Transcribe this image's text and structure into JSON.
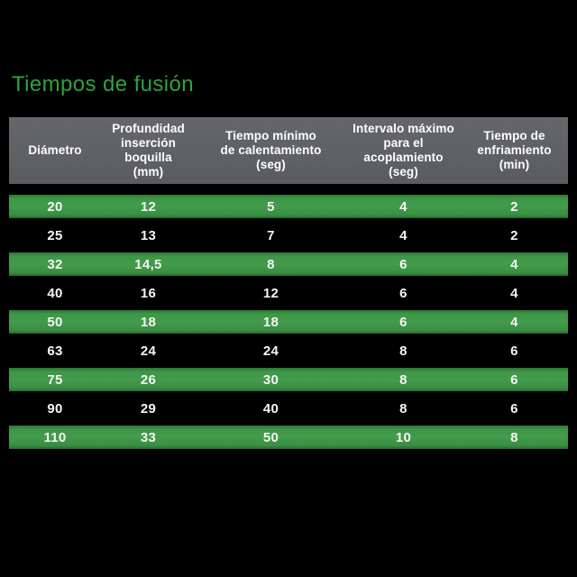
{
  "title": "Tiempos de fusión",
  "colors": {
    "background": "#000000",
    "title_green": "#2FA33D",
    "row_green": "#3E9447",
    "header_gray": "#5F6164",
    "text_white": "#FFFFFF"
  },
  "table": {
    "headers": [
      "Diámetro",
      "Profundidad\ninserción boquilla\n(mm)",
      "Tiempo mínimo\nde calentamiento\n(seg)",
      "Intervalo máximo\npara el acoplamiento\n(seg)",
      "Tiempo de\nenfriamiento\n(min)"
    ],
    "rows": [
      {
        "highlight": true,
        "cells": [
          "20",
          "12",
          "5",
          "4",
          "2"
        ]
      },
      {
        "highlight": false,
        "cells": [
          "25",
          "13",
          "7",
          "4",
          "2"
        ]
      },
      {
        "highlight": true,
        "cells": [
          "32",
          "14,5",
          "8",
          "6",
          "4"
        ]
      },
      {
        "highlight": false,
        "cells": [
          "40",
          "16",
          "12",
          "6",
          "4"
        ]
      },
      {
        "highlight": true,
        "cells": [
          "50",
          "18",
          "18",
          "6",
          "4"
        ]
      },
      {
        "highlight": false,
        "cells": [
          "63",
          "24",
          "24",
          "8",
          "6"
        ]
      },
      {
        "highlight": true,
        "cells": [
          "75",
          "26",
          "30",
          "8",
          "6"
        ]
      },
      {
        "highlight": false,
        "cells": [
          "90",
          "29",
          "40",
          "8",
          "6"
        ]
      },
      {
        "highlight": true,
        "cells": [
          "110",
          "33",
          "50",
          "10",
          "8"
        ]
      }
    ]
  },
  "chart_data": {
    "type": "table",
    "title": "Tiempos de fusión",
    "columns": [
      "Diámetro",
      "Profundidad inserción boquilla (mm)",
      "Tiempo mínimo de calentamiento (seg)",
      "Intervalo máximo para el acoplamiento (seg)",
      "Tiempo de enfriamiento (min)"
    ],
    "rows": [
      [
        20,
        12,
        5,
        4,
        2
      ],
      [
        25,
        13,
        7,
        4,
        2
      ],
      [
        32,
        "14,5",
        8,
        6,
        4
      ],
      [
        40,
        16,
        12,
        6,
        4
      ],
      [
        50,
        18,
        18,
        6,
        4
      ],
      [
        63,
        24,
        24,
        8,
        6
      ],
      [
        75,
        26,
        30,
        8,
        6
      ],
      [
        90,
        29,
        40,
        8,
        6
      ],
      [
        110,
        33,
        50,
        10,
        8
      ]
    ],
    "highlighted_row_indices": [
      0,
      2,
      4,
      6,
      8
    ],
    "layout": {
      "striping": "alternating green band on black",
      "header_background": "#5F6164",
      "stripe_color": "#3E9447",
      "text_color": "#FFFFFF"
    }
  }
}
